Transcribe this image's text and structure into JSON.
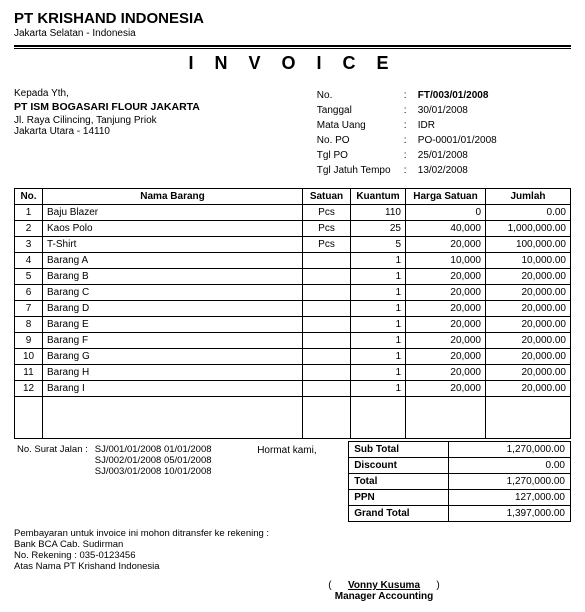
{
  "company": {
    "name": "PT KRISHAND INDONESIA",
    "location": "Jakarta Selatan - Indonesia"
  },
  "title": "I N V O I C E",
  "bill_to": {
    "salutation": "Kepada Yth,",
    "name": "PT ISM BOGASARI FLOUR JAKARTA",
    "street": "Jl. Raya Cilincing, Tanjung Priok",
    "city": "Jakarta Utara - 14110"
  },
  "meta": {
    "no_label": "No.",
    "no": "FT/003/01/2008",
    "tanggal_label": "Tanggal",
    "tanggal": "30/01/2008",
    "mata_uang_label": "Mata Uang",
    "mata_uang": "IDR",
    "no_po_label": "No. PO",
    "no_po": "PO-0001/01/2008",
    "tgl_po_label": "Tgl PO",
    "tgl_po": "25/01/2008",
    "jatuh_label": "Tgl Jatuh Tempo",
    "jatuh": "13/02/2008"
  },
  "headers": {
    "no": "No.",
    "nama": "Nama Barang",
    "satuan": "Satuan",
    "kuantum": "Kuantum",
    "harga": "Harga Satuan",
    "jumlah": "Jumlah"
  },
  "items": [
    {
      "no": "1",
      "nama": "Baju Blazer",
      "sat": "Pcs",
      "qty": "110",
      "price": "0",
      "amount": "0.00"
    },
    {
      "no": "2",
      "nama": "Kaos Polo",
      "sat": "Pcs",
      "qty": "25",
      "price": "40,000",
      "amount": "1,000,000.00"
    },
    {
      "no": "3",
      "nama": "T-Shirt",
      "sat": "Pcs",
      "qty": "5",
      "price": "20,000",
      "amount": "100,000.00"
    },
    {
      "no": "4",
      "nama": "Barang A",
      "sat": "",
      "qty": "1",
      "price": "10,000",
      "amount": "10,000.00"
    },
    {
      "no": "5",
      "nama": "Barang B",
      "sat": "",
      "qty": "1",
      "price": "20,000",
      "amount": "20,000.00"
    },
    {
      "no": "6",
      "nama": "Barang C",
      "sat": "",
      "qty": "1",
      "price": "20,000",
      "amount": "20,000.00"
    },
    {
      "no": "7",
      "nama": "Barang D",
      "sat": "",
      "qty": "1",
      "price": "20,000",
      "amount": "20,000.00"
    },
    {
      "no": "8",
      "nama": "Barang E",
      "sat": "",
      "qty": "1",
      "price": "20,000",
      "amount": "20,000.00"
    },
    {
      "no": "9",
      "nama": "Barang F",
      "sat": "",
      "qty": "1",
      "price": "20,000",
      "amount": "20,000.00"
    },
    {
      "no": "10",
      "nama": "Barang G",
      "sat": "",
      "qty": "1",
      "price": "20,000",
      "amount": "20,000.00"
    },
    {
      "no": "11",
      "nama": "Barang H",
      "sat": "",
      "qty": "1",
      "price": "20,000",
      "amount": "20,000.00"
    },
    {
      "no": "12",
      "nama": "Barang I",
      "sat": "",
      "qty": "1",
      "price": "20,000",
      "amount": "20,000.00"
    }
  ],
  "sj": {
    "label": "No. Surat Jalan :",
    "lines": [
      "SJ/001/01/2008  01/01/2008",
      "SJ/002/01/2008  05/01/2008",
      "SJ/003/01/2008  10/01/2008"
    ]
  },
  "hormat": "Hormat kami,",
  "totals": {
    "subtotal_label": "Sub Total",
    "subtotal": "1,270,000.00",
    "discount_label": "Discount",
    "discount": "0.00",
    "total_label": "Total",
    "total": "1,270,000.00",
    "ppn_label": "PPN",
    "ppn": "127,000.00",
    "grand_label": "Grand Total",
    "grand": "1,397,000.00"
  },
  "payment": {
    "line1": "Pembayaran untuk invoice ini mohon ditransfer ke rekening :",
    "line2": "Bank BCA Cab. Sudirman",
    "line3": "No. Rekening : 035-0123456",
    "line4": "Atas Nama PT Krishand Indonesia"
  },
  "signature": {
    "name": "Vonny Kusuma",
    "title": "Manager Accounting"
  }
}
